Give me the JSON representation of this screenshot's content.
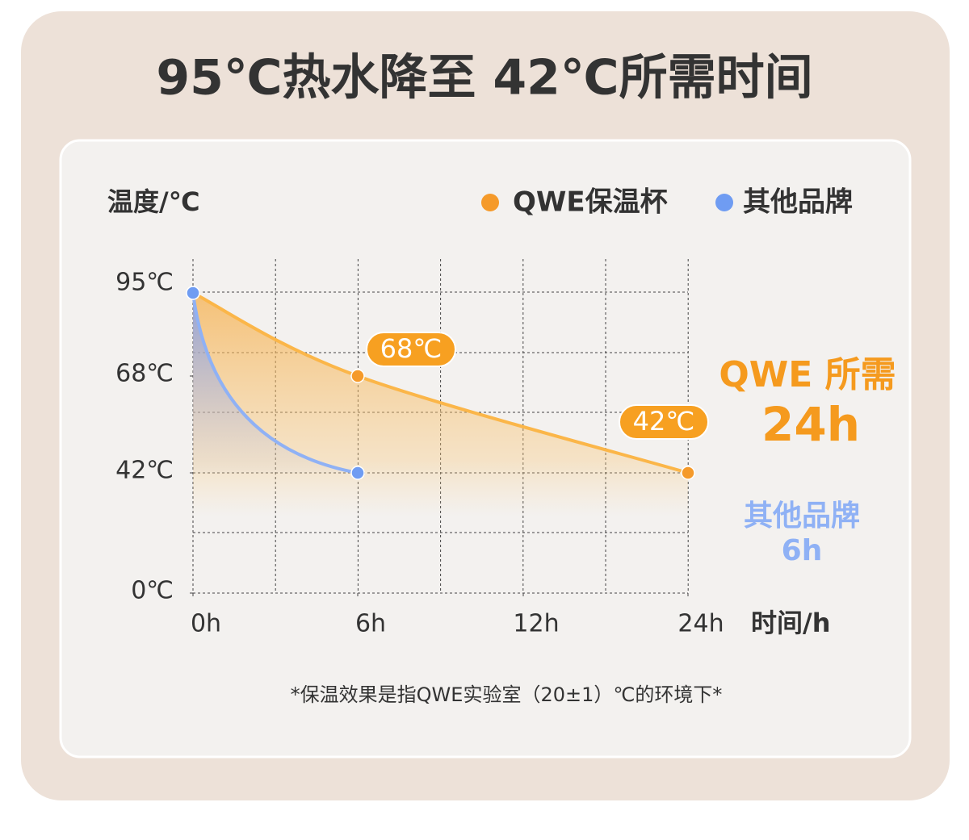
{
  "chart_data": {
    "type": "line",
    "title": "95℃热水降至 42℃所需时间",
    "y_label": "温度/℃",
    "x_label": "时间/h",
    "x": [
      0,
      6,
      24
    ],
    "xlim": [
      0,
      24
    ],
    "xticks": [
      {
        "value": 0,
        "label": "0h"
      },
      {
        "value": 6,
        "label": "6h"
      },
      {
        "value": 12,
        "label": "12h"
      },
      {
        "value": 24,
        "label": "24h"
      }
    ],
    "ylim": [
      0,
      95
    ],
    "yticks": [
      {
        "value": 95,
        "label": "95℃"
      },
      {
        "value": 68,
        "label": "68℃"
      },
      {
        "value": 42,
        "label": "42℃"
      },
      {
        "value": 0,
        "label": "0℃"
      }
    ],
    "series": [
      {
        "name": "QWE保温杯",
        "color": "#f59a2a",
        "x": [
          0,
          6,
          24
        ],
        "values": [
          95,
          68,
          42
        ],
        "value_labels": [
          null,
          "68℃",
          "42℃"
        ]
      },
      {
        "name": "其他品牌",
        "color": "#6f9cf2",
        "x": [
          0,
          6
        ],
        "values": [
          95,
          42
        ]
      }
    ],
    "grid": true,
    "annotations": [
      "QWE 所需",
      "24h",
      "其他品牌",
      "6h"
    ],
    "footnote": "*保温效果是指QWE实验室（20±1）℃的环境下*"
  }
}
